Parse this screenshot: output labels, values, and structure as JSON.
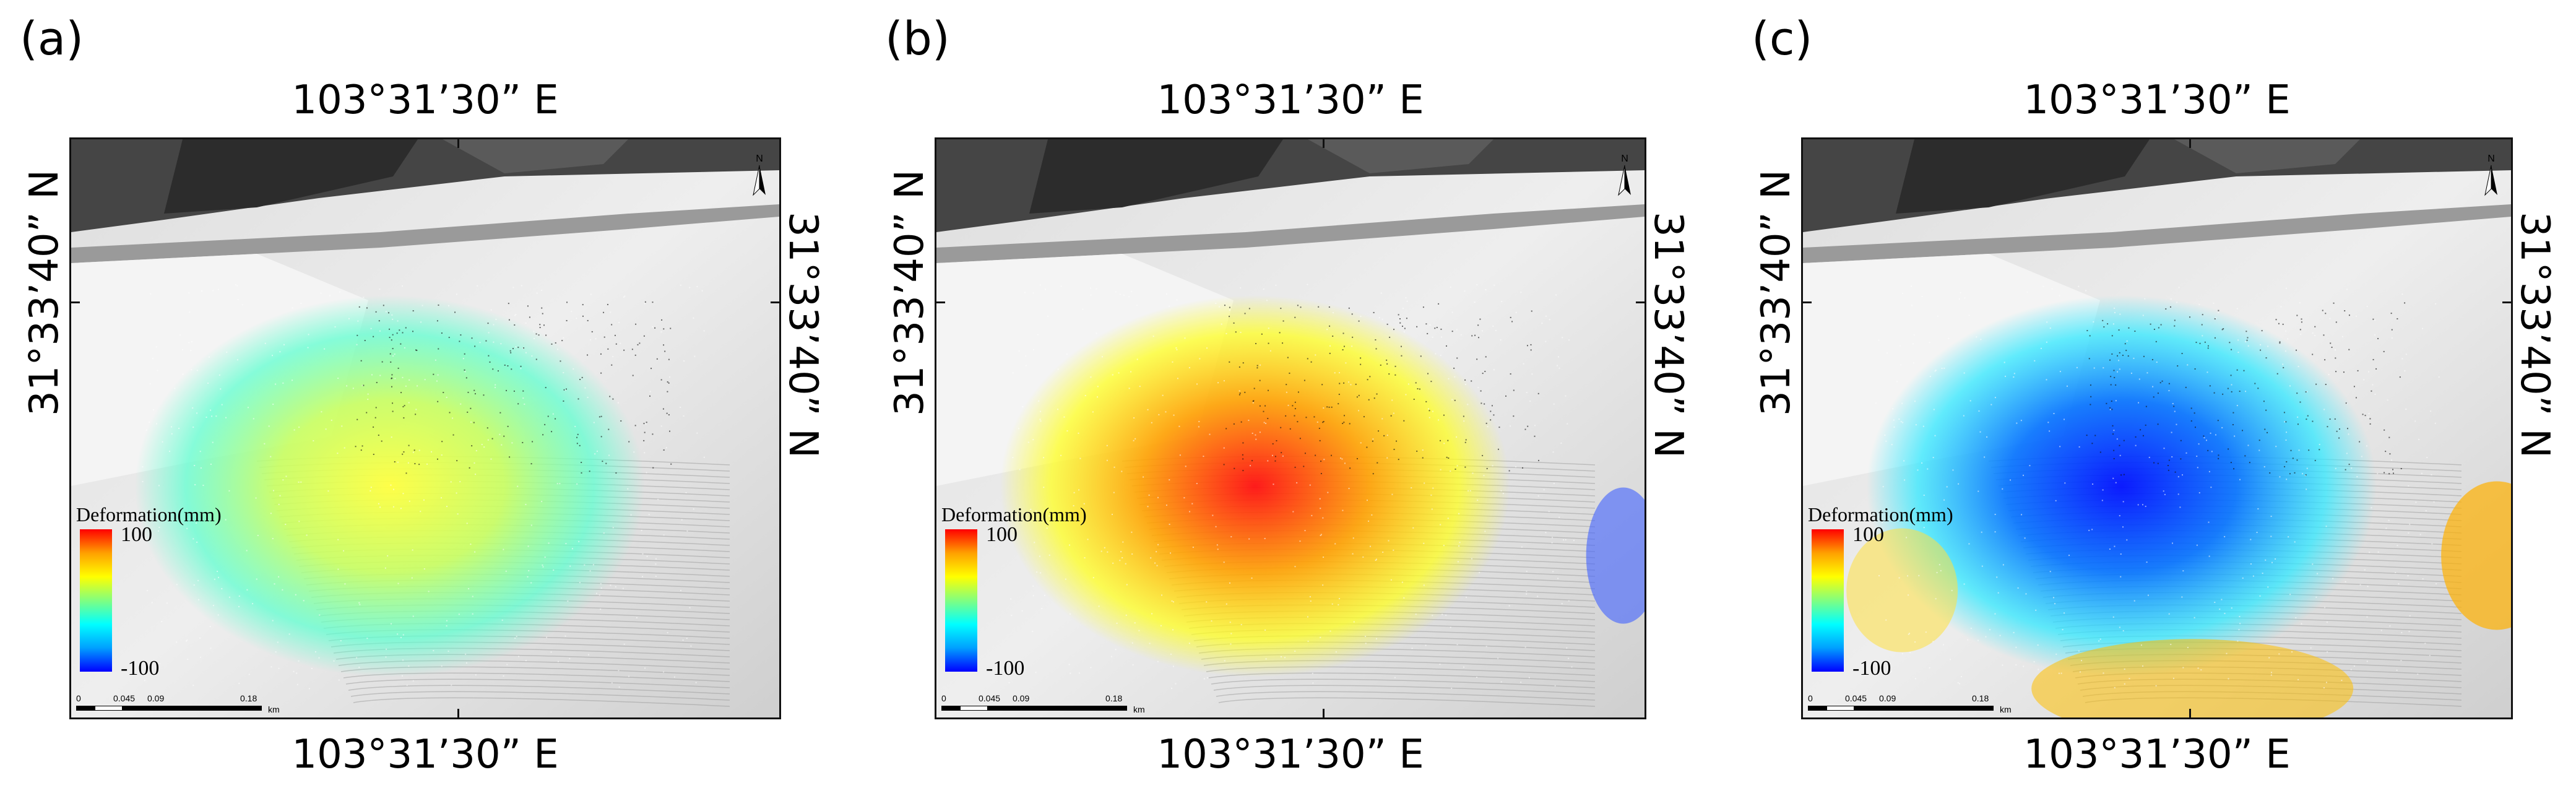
{
  "panels": [
    {
      "letter": "(a)",
      "lon_top": "103°31’30” E",
      "lon_bottom": "103°31’30” E",
      "lat_left": "31°33’40” N",
      "lat_right": "31°33’40” N",
      "legend_title": "Deformation(mm)",
      "legend_max": "100",
      "legend_min": "-100",
      "scale_labels": [
        "0",
        "0.045",
        "0.09",
        "0.18",
        "km"
      ],
      "north": "N",
      "pattern": "moderate-positive"
    },
    {
      "letter": "(b)",
      "lon_top": "103°31’30” E",
      "lon_bottom": "103°31’30” E",
      "lat_left": "31°33’40” N",
      "lat_right": "31°33’40” N",
      "legend_title": "Deformation(mm)",
      "legend_max": "100",
      "legend_min": "-100",
      "scale_labels": [
        "0",
        "0.045",
        "0.09",
        "0.18",
        "km"
      ],
      "north": "N",
      "pattern": "strong-positive"
    },
    {
      "letter": "(c)",
      "lon_top": "103°31’30” E",
      "lon_bottom": "103°31’30” E",
      "lat_left": "31°33’40” N",
      "lat_right": "31°33’40” N",
      "legend_title": "Deformation(mm)",
      "legend_max": "100",
      "legend_min": "-100",
      "scale_labels": [
        "0",
        "0.045",
        "0.09",
        "0.18",
        "km"
      ],
      "north": "N",
      "pattern": "strong-negative"
    }
  ],
  "colors": {
    "ramp": [
      "#0000ff",
      "#00a0ff",
      "#00ffff",
      "#80ff80",
      "#ffff00",
      "#ffa000",
      "#ff0000"
    ],
    "frame": "#111111",
    "hillshade_dark": "#3a3a3a",
    "hillshade_light": "#e6e6e6"
  }
}
